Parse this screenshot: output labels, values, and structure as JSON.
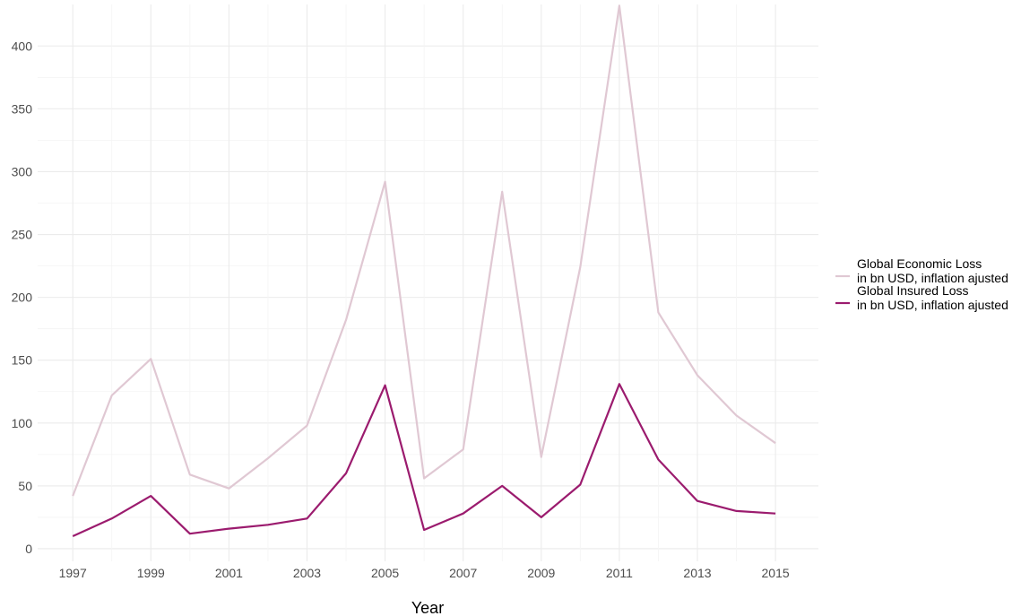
{
  "chart_data": {
    "type": "line",
    "title": "",
    "xlabel": "Year",
    "ylabel": "",
    "x": [
      1997,
      1998,
      1999,
      2000,
      2001,
      2002,
      2003,
      2004,
      2005,
      2006,
      2007,
      2008,
      2009,
      2010,
      2011,
      2012,
      2013,
      2014,
      2015
    ],
    "xlim": [
      1996.1,
      2016.1
    ],
    "x_ticks": [
      1997,
      1999,
      2001,
      2003,
      2005,
      2007,
      2009,
      2011,
      2013,
      2015
    ],
    "ylim": [
      -10,
      433
    ],
    "y_ticks": [
      0,
      50,
      100,
      150,
      200,
      250,
      300,
      350,
      400
    ],
    "grid": true,
    "legend_position": "right",
    "series": [
      {
        "name_line1": "Global Economic Loss",
        "name_line2": "in bn USD, inflation ajusted",
        "color": "#e0c8d3",
        "values": [
          42,
          122,
          151,
          59,
          48,
          72,
          98,
          182,
          292,
          56,
          79,
          284,
          73,
          224,
          432,
          188,
          138,
          106,
          84
        ]
      },
      {
        "name_line1": "Global Insured Loss",
        "name_line2": "in bn USD, inflation ajusted",
        "color": "#9b1b6e",
        "values": [
          10,
          24,
          42,
          12,
          16,
          19,
          24,
          60,
          130,
          15,
          28,
          50,
          25,
          51,
          131,
          71,
          38,
          30,
          28
        ]
      }
    ]
  }
}
